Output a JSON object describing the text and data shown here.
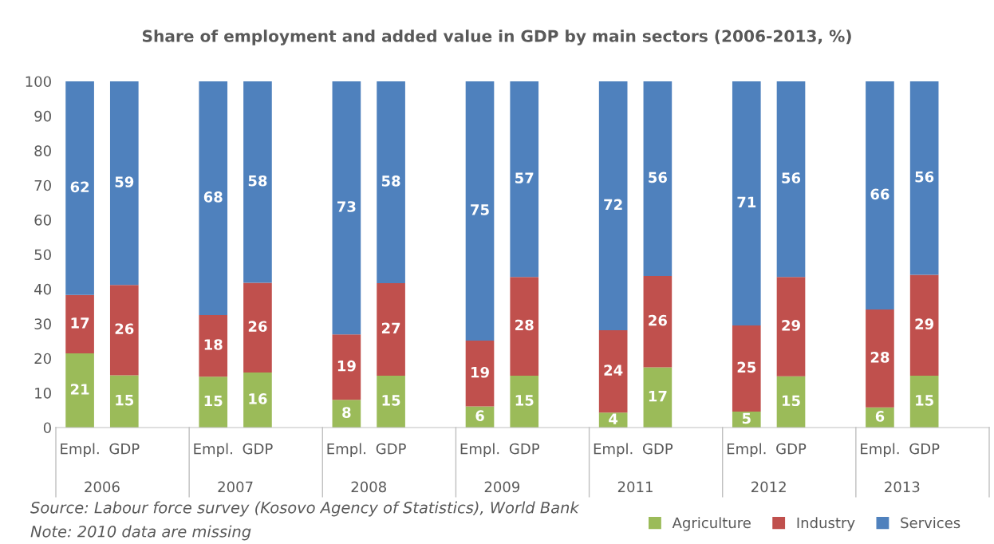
{
  "chart_data": {
    "type": "bar",
    "stacked": true,
    "title": "Share of employment and added value in GDP by main sectors (2006-2013, %)",
    "categories": [
      "Empl.",
      "GDP",
      "Empl.",
      "GDP",
      "Empl.",
      "GDP",
      "Empl.",
      "GDP",
      "Empl.",
      "GDP",
      "Empl.",
      "GDP",
      "Empl.",
      "GDP"
    ],
    "series": [
      {
        "name": "Agriculture",
        "color": "#9bbb59",
        "values": [
          21.4,
          15.1,
          14.7,
          15.9,
          8.0,
          15.0,
          6.1,
          15.0,
          4.3,
          17.4,
          4.6,
          14.8,
          5.8,
          15.0
        ],
        "value_labels": [
          "21",
          "15",
          "15",
          "16",
          "8",
          "15",
          "6",
          "15",
          "4",
          "17",
          "5",
          "15",
          "6",
          "15"
        ]
      },
      {
        "name": "Industry",
        "color": "#c0504d",
        "values": [
          16.9,
          26.1,
          17.8,
          25.9,
          18.9,
          26.7,
          19.0,
          28.5,
          23.8,
          26.4,
          24.9,
          28.7,
          28.3,
          29.1
        ],
        "value_labels": [
          "17",
          "26",
          "18",
          "26",
          "19",
          "27",
          "19",
          "28",
          "24",
          "26",
          "25",
          "29",
          "28",
          "29"
        ]
      },
      {
        "name": "Services",
        "color": "#4f81bd",
        "values": [
          61.7,
          58.8,
          67.5,
          58.2,
          73.1,
          58.3,
          74.9,
          56.5,
          71.9,
          56.2,
          70.5,
          56.5,
          65.9,
          55.9
        ],
        "value_labels": [
          "62",
          "59",
          "68",
          "58",
          "73",
          "58",
          "75",
          "57",
          "72",
          "56",
          "71",
          "56",
          "66",
          "56"
        ]
      }
    ],
    "ylim": [
      0,
      100
    ],
    "yticks": [
      0,
      10,
      20,
      30,
      40,
      50,
      60,
      70,
      80,
      90,
      100
    ],
    "grid": false,
    "legend": "bottom right",
    "annotations": [
      "2006",
      "2007",
      "2008",
      "2009",
      "2011",
      "2012",
      "2013",
      "Source: Labour force survey (Kosovo Agency of Statistics), World Bank",
      "Note: 2010 data are missing"
    ]
  }
}
